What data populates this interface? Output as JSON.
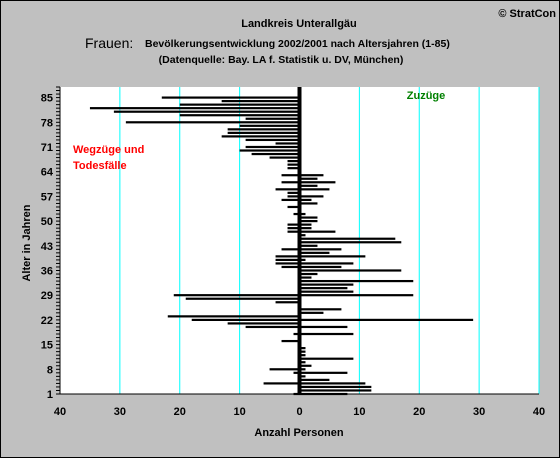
{
  "copyright": "© StratCon",
  "header": {
    "line1": "Landkreis Unterallgäu",
    "prefix": "Frauen:",
    "line2": "Bevölkerungsentwicklung 2002/2001 nach Altersjahren (1-85)",
    "line3": "(Datenquelle: Bay. LA f. Statistik u. DV, München)"
  },
  "annotations": {
    "right": "Zuzüge",
    "left_line1": "Wegzüge und",
    "left_line2": "Todesfälle"
  },
  "colors": {
    "background": "#c0c0c0",
    "plot_background": "#ffffff",
    "bars": "#000000",
    "gridlines": "#00ffff",
    "right_annotation": "#008000",
    "left_annotation": "#ff0000"
  },
  "chart_data": {
    "type": "bar",
    "orientation": "horizontal",
    "xlabel": "Anzahl Personen",
    "ylabel": "Alter in Jahren",
    "xlim": [
      -40,
      40
    ],
    "ylim": [
      1,
      88
    ],
    "x_tick_values": [
      -40,
      -30,
      -20,
      -10,
      0,
      10,
      20,
      30,
      40
    ],
    "x_tick_labels": [
      "40",
      "30",
      "20",
      "10",
      "0",
      "10",
      "20",
      "30",
      "40"
    ],
    "y_ticks": [
      1,
      8,
      15,
      22,
      29,
      36,
      43,
      50,
      57,
      64,
      71,
      78,
      85
    ],
    "grid": true,
    "ages": [
      1,
      2,
      3,
      4,
      5,
      6,
      7,
      8,
      9,
      10,
      11,
      12,
      13,
      14,
      15,
      16,
      17,
      18,
      19,
      20,
      21,
      22,
      23,
      24,
      25,
      26,
      27,
      28,
      29,
      30,
      31,
      32,
      33,
      34,
      35,
      36,
      37,
      38,
      39,
      40,
      41,
      42,
      43,
      44,
      45,
      46,
      47,
      48,
      49,
      50,
      51,
      52,
      53,
      54,
      55,
      56,
      57,
      58,
      59,
      60,
      61,
      62,
      63,
      64,
      65,
      66,
      67,
      68,
      69,
      70,
      71,
      72,
      73,
      74,
      75,
      76,
      77,
      78,
      79,
      80,
      81,
      82,
      83,
      84,
      85
    ],
    "series": [
      {
        "name": "Zuzüge",
        "values": [
          8,
          12,
          12,
          11,
          5,
          1,
          8,
          1,
          2,
          1,
          9,
          1,
          1,
          1,
          0,
          0,
          0,
          9,
          0,
          8,
          0,
          29,
          0,
          4,
          7,
          0,
          0,
          0,
          19,
          9,
          8,
          9,
          19,
          2,
          3,
          17,
          7,
          9,
          1,
          11,
          5,
          7,
          3,
          17,
          16,
          1,
          6,
          2,
          2,
          3,
          3,
          1,
          0,
          0,
          3,
          2,
          4,
          0,
          5,
          3,
          6,
          3,
          4,
          0,
          0,
          0,
          0,
          0,
          0,
          0,
          0,
          0,
          0,
          0,
          0,
          0,
          0,
          0,
          0,
          0,
          0,
          0,
          0,
          0,
          0
        ]
      },
      {
        "name": "Wegzüge und Todesfälle",
        "values": [
          -1,
          0,
          0,
          -6,
          0,
          0,
          -1,
          -5,
          0,
          0,
          0,
          0,
          0,
          0,
          0,
          -3,
          0,
          -1,
          0,
          -9,
          -12,
          -18,
          -22,
          0,
          0,
          0,
          -4,
          -19,
          -21,
          0,
          0,
          0,
          0,
          0,
          0,
          0,
          -3,
          -4,
          -4,
          -4,
          0,
          -3,
          0,
          0,
          0,
          0,
          -2,
          -2,
          -2,
          0,
          0,
          -1,
          0,
          -2,
          0,
          -3,
          -2,
          -2,
          -4,
          0,
          -3,
          0,
          -3,
          0,
          -2,
          -2,
          -2,
          -5,
          -8,
          -10,
          -9,
          -4,
          -9,
          -13,
          -12,
          -12,
          -10,
          -29,
          -9,
          -20,
          -31,
          -35,
          -20,
          -13,
          -23
        ]
      }
    ]
  }
}
